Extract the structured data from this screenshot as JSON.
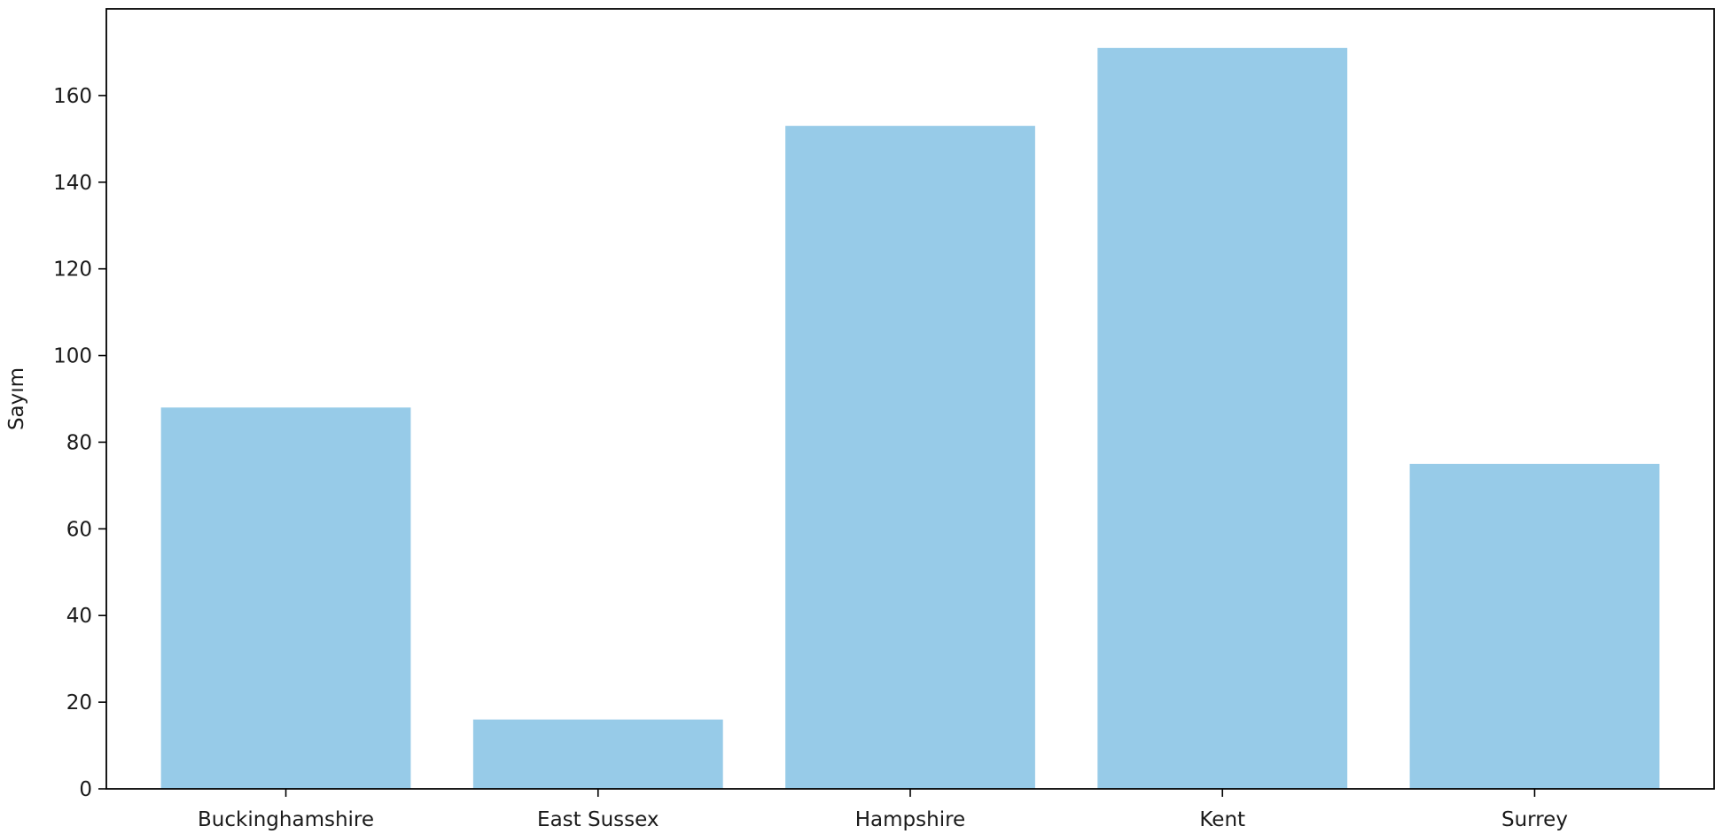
{
  "chart_data": {
    "type": "bar",
    "categories": [
      "Buckinghamshire",
      "East Sussex",
      "Hampshire",
      "Kent",
      "Surrey"
    ],
    "values": [
      88,
      16,
      153,
      171,
      75
    ],
    "title": "",
    "xlabel": "",
    "ylabel": "Sayım",
    "ylim": [
      0,
      180
    ],
    "yticks": [
      0,
      20,
      40,
      60,
      80,
      100,
      120,
      140,
      160
    ],
    "grid": false,
    "bar_color": "#97cbe8"
  }
}
